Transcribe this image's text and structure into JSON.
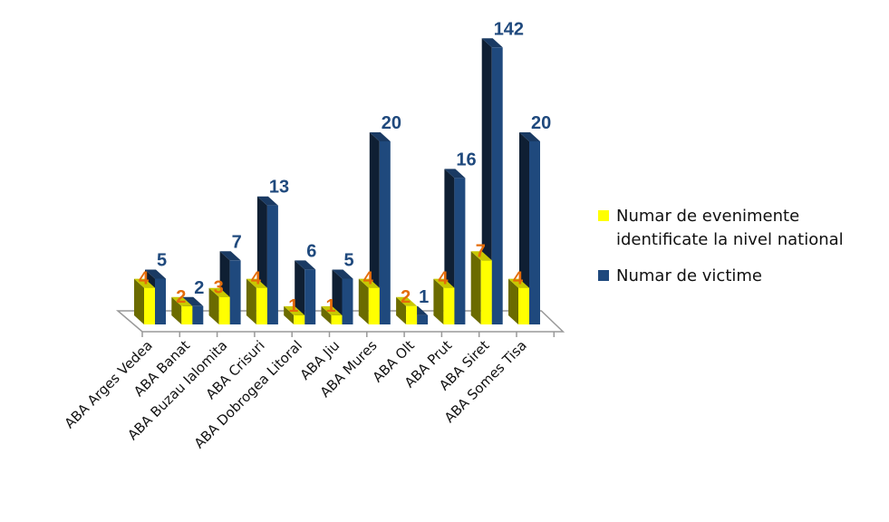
{
  "chart_data": {
    "type": "bar",
    "style": "3d-clustered",
    "categories": [
      "ABA Arges Vedea",
      "ABA Banat",
      "ABA Buzau Ialomita",
      "ABA Crisuri",
      "ABA Dobrogea Litoral",
      "ABA Jiu",
      "ABA Mures",
      "ABA Olt",
      "ABA Prut",
      "ABA Siret",
      "ABA Somes Tisa"
    ],
    "series": [
      {
        "name": "Numar de evenimente identificate la nivel national",
        "values": [
          4,
          2,
          3,
          4,
          1,
          1,
          4,
          2,
          4,
          7,
          4
        ],
        "color": "#ffff00",
        "label_color": "#e46c0a"
      },
      {
        "name": "Numar de victime",
        "values": [
          5,
          2,
          7,
          13,
          6,
          5,
          20,
          1,
          16,
          142,
          20
        ],
        "color": "#1f497d",
        "label_color": "#1f497d"
      }
    ],
    "title": "",
    "xlabel": "",
    "ylabel": "",
    "grid": false,
    "legend_position": "right"
  }
}
